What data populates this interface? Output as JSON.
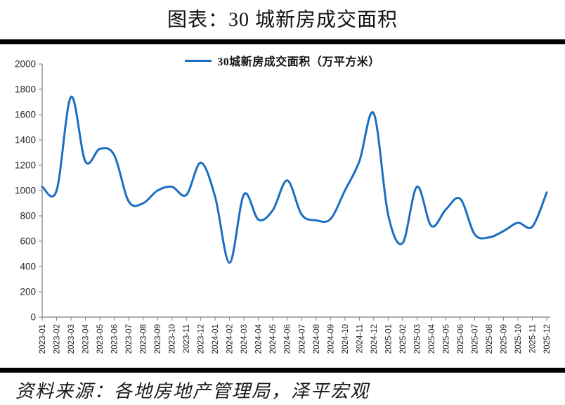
{
  "title": "图表：30 城新房成交面积",
  "source": "资料来源：各地房地产管理局，泽平宏观",
  "chart_data": {
    "type": "line",
    "title": "图表：30 城新房成交面积",
    "legend": "30城新房成交面积（万平方米）",
    "legend_position": "top-center",
    "line_color": "#1b6ec0",
    "axis_color": "#7f7f7f",
    "label_color": "#262626",
    "smooth": true,
    "grid": false,
    "xlabel": "",
    "ylabel": "",
    "ylim": [
      0,
      2000
    ],
    "ytick_step": 200,
    "x": [
      "2023-01",
      "2023-02",
      "2023-03",
      "2023-04",
      "2023-05",
      "2023-06",
      "2023-07",
      "2023-08",
      "2023-09",
      "2023-10",
      "2023-11",
      "2023-12",
      "2024-01",
      "2024-02",
      "2024-03",
      "2024-04",
      "2024-05",
      "2024-06",
      "2024-07",
      "2024-08",
      "2024-09",
      "2024-10",
      "2024-11",
      "2024-12",
      "2025-01",
      "2025-02",
      "2025-03",
      "2025-04",
      "2025-05",
      "2025-06",
      "2025-07",
      "2025-08",
      "2025-09",
      "2025-10",
      "2025-11",
      "2025-12"
    ],
    "values": [
      1030,
      1000,
      1740,
      1230,
      1330,
      1280,
      915,
      900,
      1000,
      1030,
      965,
      1220,
      950,
      430,
      970,
      770,
      845,
      1080,
      810,
      765,
      775,
      1000,
      1230,
      1610,
      810,
      585,
      1030,
      720,
      850,
      935,
      655,
      630,
      680,
      745,
      715,
      985
    ]
  }
}
